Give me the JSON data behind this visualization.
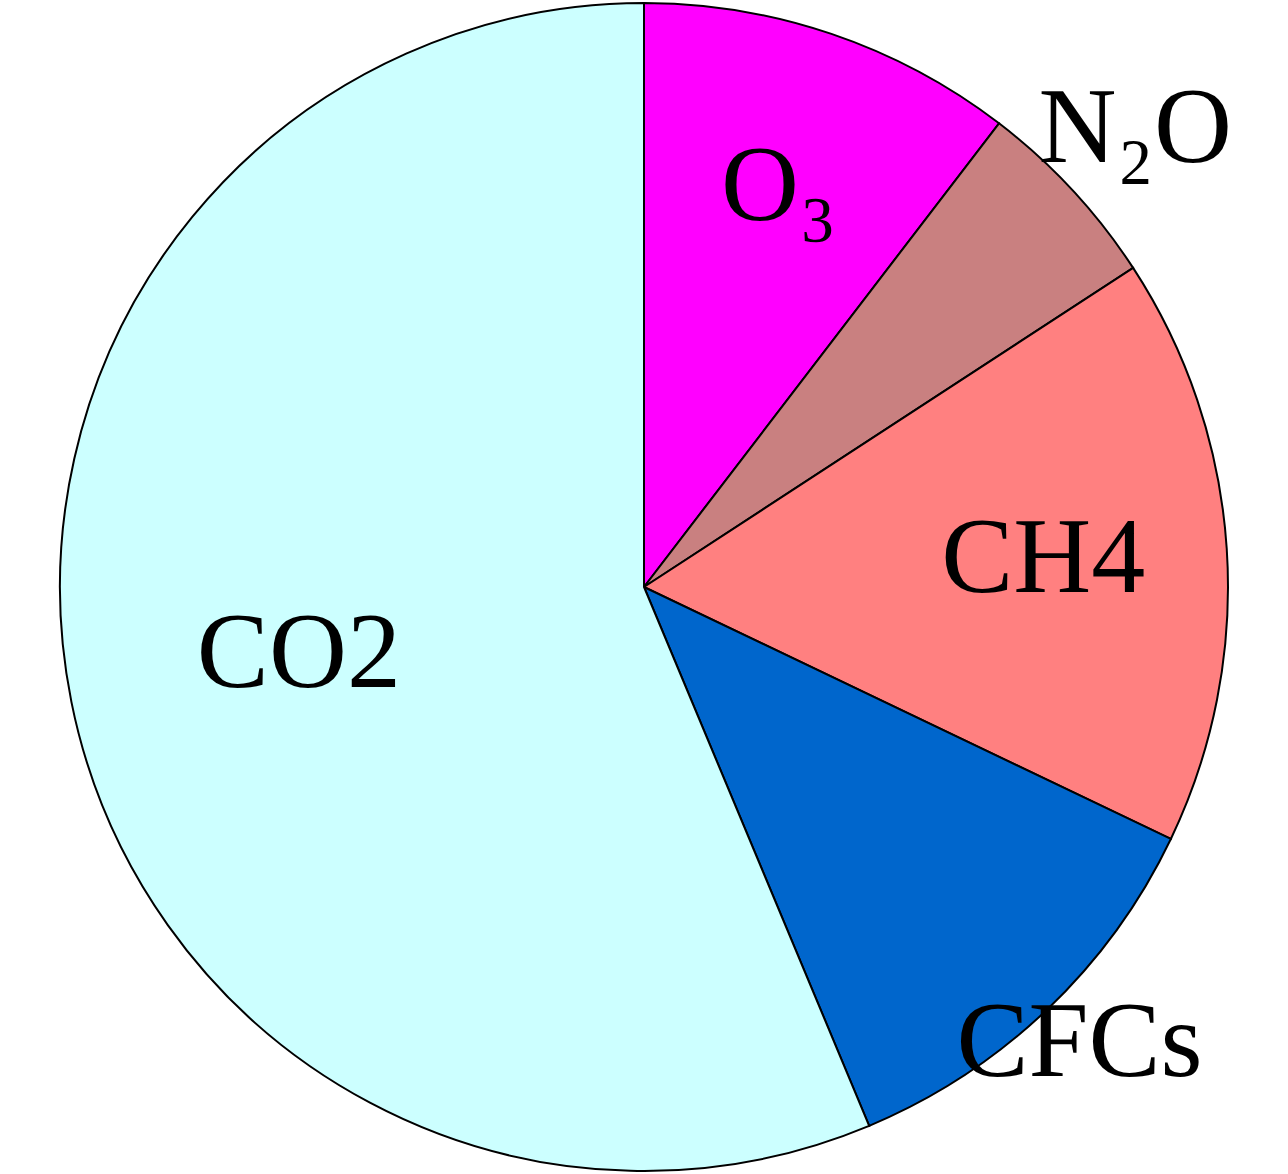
{
  "chart_data": {
    "type": "pie",
    "categories": [
      "O₃",
      "N₂O",
      "CH4",
      "CFCs",
      "CO2"
    ],
    "values": [
      10.4,
      5.4,
      16.3,
      11.6,
      56.3
    ],
    "colors": [
      "#ff00ff",
      "#c98080",
      "#ff8080",
      "#0066cc",
      "#ccffff"
    ]
  }
}
